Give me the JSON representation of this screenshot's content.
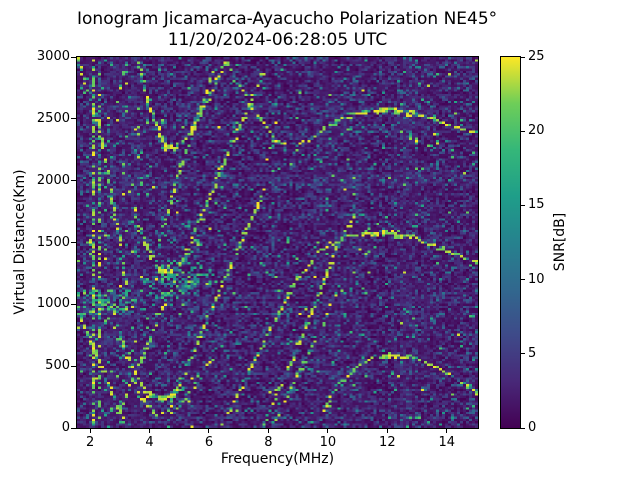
{
  "chart_data": {
    "type": "heatmap",
    "title": "Ionogram Jicamarca-Ayacucho Polarization NE45°",
    "subtitle": "11/20/2024-06:28:05 UTC",
    "xlabel": "Frequency(MHz)",
    "ylabel": "Virtual Distance(Km)",
    "xlim": [
      1.56,
      15.05
    ],
    "ylim": [
      0,
      3000
    ],
    "xticks": [
      2,
      4,
      6,
      8,
      10,
      12,
      14
    ],
    "yticks": [
      0,
      500,
      1000,
      1500,
      2000,
      2500,
      3000
    ],
    "grid": {
      "nx": 134,
      "ny": 161
    },
    "seed": 42,
    "colorbar": {
      "label": "SNR[dB]",
      "min": 0,
      "max": 25,
      "ticks": [
        0,
        5,
        10,
        15,
        20,
        25
      ],
      "colormap": "viridis"
    },
    "viridis_stops": [
      "#440154",
      "#482878",
      "#3e4a89",
      "#31688e",
      "#26828e",
      "#1f9e89",
      "#35b779",
      "#6ece58",
      "#fde725"
    ],
    "background_noise": {
      "description": "dark viridis speckle noise, SNR mostly 0-7 dB with rare bright pixels",
      "bright_speckle_prob": 0.004
    },
    "rfi_bands": [
      {
        "f": [
          1.95,
          3.6
        ],
        "strength": 0.7,
        "speckle": 0.035
      },
      {
        "f": [
          3.6,
          4.75
        ],
        "strength": 0.38,
        "speckle": 0.012
      },
      {
        "f": [
          4.9,
          5.5
        ],
        "strength": 0.3,
        "speckle": 0.008
      },
      {
        "f": [
          6.35,
          6.6
        ],
        "strength": 0.2,
        "speckle": 0.004
      },
      {
        "f": [
          8.25,
          8.5
        ],
        "strength": 0.3,
        "speckle": 0.005
      },
      {
        "f": [
          9.6,
          10.3
        ],
        "strength": 0.5,
        "speckle": 0.008
      },
      {
        "f": [
          10.5,
          11.25
        ],
        "strength": 0.55,
        "speckle": 0.008
      },
      {
        "f": [
          12.2,
          12.95
        ],
        "strength": 0.62,
        "speckle": 0.008
      },
      {
        "f": [
          13.2,
          13.65
        ],
        "strength": 0.45,
        "speckle": 0.006
      },
      {
        "f": [
          14.05,
          14.35
        ],
        "strength": 0.3,
        "speckle": 0.005
      },
      {
        "f": [
          14.7,
          14.95
        ],
        "strength": 0.25,
        "speckle": 0.004
      }
    ],
    "escatter_band": {
      "f": [
        1.56,
        3.5
      ],
      "h": [
        915,
        1105
      ],
      "prob": 0.4,
      "tail_f": [
        3.5,
        4.3
      ],
      "tail_prob": 0.12
    },
    "spread_cloud": {
      "center": [
        4.95,
        1185
      ],
      "rx": 1.3,
      "ry": 175
    },
    "traces": [
      {
        "name": "vertical-2.1MHz",
        "points": [
          [
            2.08,
            20,
            0.4
          ],
          [
            2.08,
            2980,
            0.4
          ]
        ]
      },
      {
        "name": "vertical-2.3MHz",
        "points": [
          [
            2.32,
            20,
            0.22
          ],
          [
            2.32,
            2980,
            0.22
          ]
        ]
      },
      {
        "name": "descending-left-low",
        "points": [
          [
            1.58,
            960,
            0.55
          ],
          [
            2.2,
            610,
            0.55
          ],
          [
            2.75,
            280,
            0.55
          ],
          [
            3.1,
            90,
            0.5
          ]
        ]
      },
      {
        "name": "descending-left-top",
        "points": [
          [
            1.56,
            3000,
            0.42
          ],
          [
            2.2,
            2560,
            0.42
          ],
          [
            2.6,
            2050,
            0.4
          ],
          [
            2.95,
            1560,
            0.35
          ],
          [
            3.2,
            1180,
            0.28
          ]
        ]
      },
      {
        "name": "cusp-hop1",
        "points": [
          [
            2.95,
            790,
            0.4
          ],
          [
            3.3,
            540,
            0.5
          ],
          [
            3.7,
            365,
            0.6
          ],
          [
            4.05,
            268,
            0.85
          ],
          [
            4.3,
            240,
            0.95
          ],
          [
            4.65,
            260,
            0.85
          ],
          [
            5.1,
            325,
            0.6
          ],
          [
            5.6,
            425,
            0.5
          ],
          [
            6.1,
            545,
            0.4
          ]
        ]
      },
      {
        "name": "cusp-hop1-echo",
        "points": [
          [
            3.35,
            430,
            0.28
          ],
          [
            3.8,
            230,
            0.35
          ],
          [
            4.25,
            105,
            0.42
          ],
          [
            4.7,
            110,
            0.4
          ],
          [
            5.1,
            200,
            0.32
          ],
          [
            5.5,
            330,
            0.28
          ],
          [
            5.85,
            440,
            0.24
          ]
        ]
      },
      {
        "name": "cusp-hop2",
        "points": [
          [
            3.45,
            1800,
            0.35
          ],
          [
            3.75,
            1560,
            0.45
          ],
          [
            4.05,
            1385,
            0.6
          ],
          [
            4.35,
            1272,
            0.9
          ],
          [
            4.7,
            1265,
            0.85
          ],
          [
            5.05,
            1330,
            0.6
          ],
          [
            5.55,
            1465,
            0.45
          ],
          [
            6.05,
            1625,
            0.35
          ]
        ]
      },
      {
        "name": "cusp-hop3",
        "points": [
          [
            3.62,
            2950,
            0.4
          ],
          [
            3.95,
            2640,
            0.5
          ],
          [
            4.25,
            2420,
            0.7
          ],
          [
            4.55,
            2272,
            0.9
          ],
          [
            4.9,
            2268,
            0.8
          ],
          [
            5.35,
            2385,
            0.6
          ],
          [
            5.85,
            2590,
            0.5
          ],
          [
            6.35,
            2840,
            0.45
          ],
          [
            6.6,
            2965,
            0.4
          ]
        ]
      },
      {
        "name": "dome-top",
        "points": [
          [
            6.6,
            2950,
            0.3
          ],
          [
            7.4,
            2600,
            0.38
          ],
          [
            8.2,
            2330,
            0.45
          ],
          [
            9.0,
            2280,
            0.5
          ],
          [
            9.9,
            2420,
            0.6
          ],
          [
            10.9,
            2540,
            0.7
          ],
          [
            11.9,
            2582,
            0.85
          ],
          [
            12.9,
            2548,
            0.8
          ],
          [
            13.9,
            2465,
            0.75
          ],
          [
            15.04,
            2390,
            0.7
          ]
        ]
      },
      {
        "name": "dome-top-echo",
        "points": [
          [
            12.2,
            2405,
            0.3
          ],
          [
            13.0,
            2330,
            0.32
          ],
          [
            13.8,
            2245,
            0.3
          ],
          [
            14.5,
            2175,
            0.25
          ]
        ]
      },
      {
        "name": "dome-mid",
        "points": [
          [
            6.47,
            30,
            0.4
          ],
          [
            7.3,
            420,
            0.45
          ],
          [
            8.1,
            810,
            0.5
          ],
          [
            8.9,
            1180,
            0.55
          ],
          [
            9.7,
            1430,
            0.6
          ],
          [
            10.5,
            1535,
            0.7
          ],
          [
            11.3,
            1575,
            0.8
          ],
          [
            12.0,
            1588,
            0.85
          ],
          [
            12.8,
            1548,
            0.8
          ],
          [
            13.6,
            1472,
            0.7
          ],
          [
            14.5,
            1392,
            0.65
          ],
          [
            15.04,
            1332,
            0.65
          ]
        ]
      },
      {
        "name": "dome-mid-echo",
        "points": [
          [
            7.82,
            30,
            0.4
          ],
          [
            8.7,
            490,
            0.45
          ],
          [
            9.5,
            960,
            0.45
          ],
          [
            10.3,
            1455,
            0.45
          ],
          [
            10.85,
            1690,
            0.35
          ]
        ]
      },
      {
        "name": "dome-bottom",
        "points": [
          [
            9.85,
            140,
            0.4
          ],
          [
            10.3,
            340,
            0.5
          ],
          [
            10.9,
            472,
            0.6
          ],
          [
            11.5,
            565,
            0.7
          ],
          [
            12.05,
            598,
            0.85
          ],
          [
            12.7,
            576,
            0.75
          ],
          [
            13.4,
            520,
            0.65
          ],
          [
            14.1,
            432,
            0.6
          ],
          [
            14.7,
            340,
            0.55
          ],
          [
            15.04,
            272,
            0.5
          ]
        ]
      },
      {
        "name": "diag-1",
        "points": [
          [
            2.95,
            110,
            0.4
          ],
          [
            4.0,
            710,
            0.42
          ],
          [
            5.1,
            1340,
            0.45
          ],
          [
            6.2,
            1965,
            0.45
          ],
          [
            7.05,
            2430,
            0.4
          ],
          [
            7.85,
            2890,
            0.35
          ]
        ]
      },
      {
        "name": "diag-2",
        "points": [
          [
            4.35,
            1530,
            0.4
          ],
          [
            5.0,
            2075,
            0.42
          ],
          [
            5.68,
            2545,
            0.42
          ],
          [
            6.22,
            2925,
            0.38
          ]
        ]
      },
      {
        "name": "diag-3",
        "points": [
          [
            4.6,
            130,
            0.38
          ],
          [
            5.36,
            550,
            0.45
          ],
          [
            6.3,
            1075,
            0.48
          ],
          [
            7.28,
            1605,
            0.48
          ],
          [
            7.95,
            1965,
            0.4
          ]
        ]
      },
      {
        "name": "diag-4",
        "points": [
          [
            8.2,
            40,
            0.38
          ],
          [
            9.0,
            430,
            0.42
          ],
          [
            9.85,
            850,
            0.38
          ],
          [
            10.4,
            1150,
            0.3
          ]
        ]
      }
    ]
  }
}
